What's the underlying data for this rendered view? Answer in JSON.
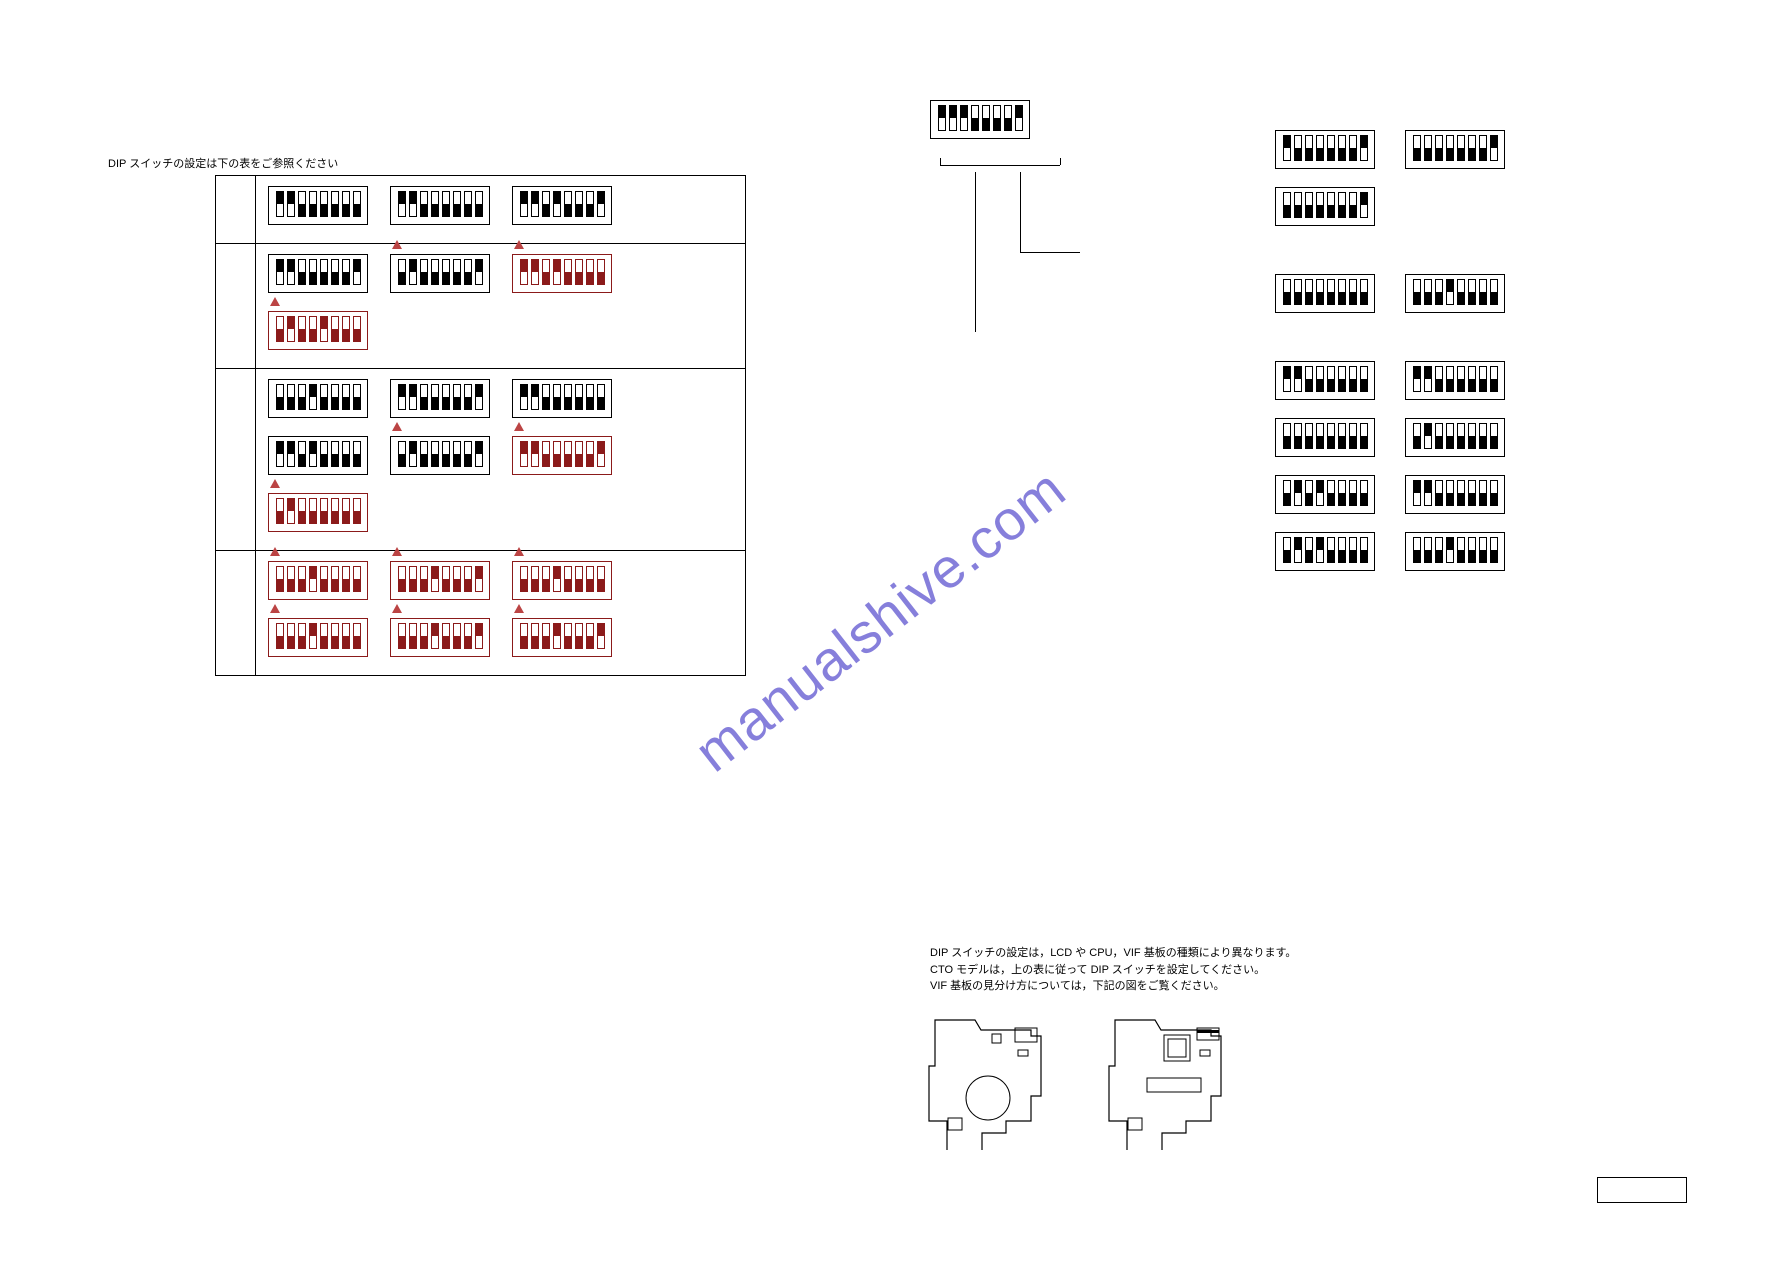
{
  "title": "DIP スイッチの設定は下の表をご参照ください",
  "notes": [
    "DIP スイッチの設定は，LCD や CPU，VIF 基板の種類により異なります。",
    "CTO モデルは，上の表に従って DIP スイッチを設定してください。",
    "VIF 基板の見分け方については，下記の図をご覧ください。"
  ],
  "watermark": "manualshive.com",
  "colors": {
    "black": "#000000",
    "red": "#8b1a1a",
    "tri": "#b44",
    "watermark": "#7a72d8"
  },
  "left_rows": [
    {
      "lines": [
        {
          "cells": [
            {
              "pattern": [
                1,
                1,
                0,
                0,
                0,
                0,
                0,
                0
              ],
              "red": false,
              "tri": false
            },
            {
              "pattern": [
                1,
                1,
                0,
                0,
                0,
                0,
                0,
                0
              ],
              "red": false,
              "tri": false
            },
            {
              "pattern": [
                1,
                1,
                0,
                1,
                0,
                0,
                0,
                1
              ],
              "red": false,
              "tri": false
            }
          ]
        }
      ]
    },
    {
      "lines": [
        {
          "cells": [
            {
              "pattern": [
                1,
                1,
                0,
                0,
                0,
                0,
                0,
                1
              ],
              "red": false,
              "tri": false
            },
            {
              "pattern": [
                0,
                1,
                0,
                0,
                0,
                0,
                0,
                1
              ],
              "red": false,
              "tri": true
            },
            {
              "pattern": [
                1,
                1,
                0,
                1,
                0,
                0,
                0,
                0
              ],
              "red": true,
              "tri": true
            }
          ]
        },
        {
          "cells": [
            {
              "pattern": [
                0,
                1,
                0,
                0,
                1,
                0,
                0,
                0
              ],
              "red": true,
              "tri": true
            }
          ]
        }
      ]
    },
    {
      "lines": [
        {
          "cells": [
            {
              "pattern": [
                0,
                0,
                0,
                1,
                0,
                0,
                0,
                0
              ],
              "red": false,
              "tri": false
            },
            {
              "pattern": [
                1,
                1,
                0,
                0,
                0,
                0,
                0,
                1
              ],
              "red": false,
              "tri": false
            },
            {
              "pattern": [
                1,
                1,
                0,
                0,
                0,
                0,
                0,
                0
              ],
              "red": false,
              "tri": false
            }
          ]
        },
        {
          "cells": [
            {
              "pattern": [
                1,
                1,
                0,
                1,
                0,
                0,
                0,
                0
              ],
              "red": false,
              "tri": false
            },
            {
              "pattern": [
                0,
                1,
                0,
                0,
                0,
                0,
                0,
                1
              ],
              "red": false,
              "tri": true
            },
            {
              "pattern": [
                1,
                1,
                0,
                0,
                0,
                0,
                0,
                1
              ],
              "red": true,
              "tri": true
            }
          ]
        },
        {
          "cells": [
            {
              "pattern": [
                0,
                1,
                0,
                0,
                0,
                0,
                0,
                0
              ],
              "red": true,
              "tri": true
            }
          ]
        }
      ]
    },
    {
      "lines": [
        {
          "cells": [
            {
              "pattern": [
                0,
                0,
                0,
                1,
                0,
                0,
                0,
                0
              ],
              "red": true,
              "tri": true
            },
            {
              "pattern": [
                0,
                0,
                0,
                1,
                0,
                0,
                0,
                1
              ],
              "red": true,
              "tri": true
            },
            {
              "pattern": [
                0,
                0,
                0,
                1,
                0,
                0,
                0,
                0
              ],
              "red": true,
              "tri": true
            }
          ]
        },
        {
          "cells": [
            {
              "pattern": [
                0,
                0,
                0,
                1,
                0,
                0,
                0,
                0
              ],
              "red": true,
              "tri": true
            },
            {
              "pattern": [
                0,
                0,
                0,
                1,
                0,
                0,
                0,
                1
              ],
              "red": true,
              "tri": true
            },
            {
              "pattern": [
                0,
                0,
                0,
                1,
                0,
                0,
                0,
                1
              ],
              "red": true,
              "tri": true
            }
          ]
        }
      ]
    }
  ],
  "lead_dip": {
    "pattern": [
      1,
      1,
      1,
      0,
      0,
      0,
      0,
      1
    ],
    "red": false
  },
  "right_groups": [
    [
      [
        {
          "pattern": [
            1,
            0,
            0,
            0,
            0,
            0,
            0,
            1
          ]
        },
        {
          "pattern": [
            0,
            0,
            0,
            0,
            0,
            0,
            0,
            1
          ]
        }
      ],
      [
        {
          "pattern": [
            0,
            0,
            0,
            0,
            0,
            0,
            0,
            1
          ]
        }
      ]
    ],
    [
      [
        {
          "pattern": [
            0,
            0,
            0,
            0,
            0,
            0,
            0,
            0
          ]
        },
        {
          "pattern": [
            0,
            0,
            0,
            1,
            0,
            0,
            0,
            0
          ]
        }
      ]
    ],
    [
      [
        {
          "pattern": [
            1,
            1,
            0,
            0,
            0,
            0,
            0,
            0
          ]
        },
        {
          "pattern": [
            1,
            1,
            0,
            0,
            0,
            0,
            0,
            0
          ]
        }
      ],
      [
        {
          "pattern": [
            0,
            0,
            0,
            0,
            0,
            0,
            0,
            0
          ]
        },
        {
          "pattern": [
            0,
            1,
            0,
            0,
            0,
            0,
            0,
            0
          ]
        }
      ],
      [
        {
          "pattern": [
            0,
            1,
            0,
            1,
            0,
            0,
            0,
            0
          ]
        },
        {
          "pattern": [
            1,
            1,
            0,
            0,
            0,
            0,
            0,
            0
          ]
        }
      ],
      [
        {
          "pattern": [
            0,
            1,
            0,
            1,
            0,
            0,
            0,
            0
          ]
        },
        {
          "pattern": [
            0,
            0,
            0,
            1,
            0,
            0,
            0,
            0
          ]
        }
      ]
    ]
  ]
}
